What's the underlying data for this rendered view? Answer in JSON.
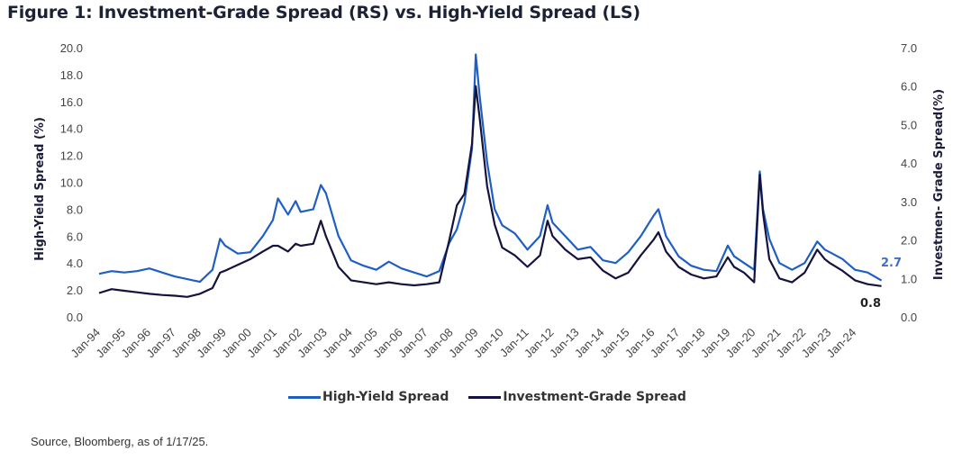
{
  "title": "Figure 1: Investment-Grade Spread (RS) vs. High-Yield Spread (LS)",
  "source": "Source, Bloomberg, as of 1/17/25.",
  "colors": {
    "high_yield": "#1f5fc4",
    "investment_grade": "#14133d",
    "hy_end_label": "#3b6fc9",
    "ig_end_label": "#222222"
  },
  "chart_data": {
    "type": "line",
    "title": "Figure 1: Investment-Grade Spread (RS) vs. High-Yield Spread (LS)",
    "xlabel": "",
    "ylabel_left": "High-Yield Spread (%)",
    "ylabel_right": "Investmen- Grade Spread(%)",
    "ylim_left": [
      0,
      20
    ],
    "ylim_right": [
      0,
      7
    ],
    "yticks_left": [
      "0.0",
      "2.0",
      "4.0",
      "6.0",
      "8.0",
      "10.0",
      "12.0",
      "14.0",
      "16.0",
      "18.0",
      "20.0"
    ],
    "yticks_right": [
      "0.0",
      "1.0",
      "2.0",
      "3.0",
      "4.0",
      "5.0",
      "6.0",
      "7.0"
    ],
    "xticks": [
      "Jan-94",
      "Jan-95",
      "Jan-96",
      "Jan-97",
      "Jan-98",
      "Jan-99",
      "Jan-00",
      "Jan-01",
      "Jan-02",
      "Jan-03",
      "Jan-04",
      "Jan-05",
      "Jan-06",
      "Jan-07",
      "Jan-08",
      "Jan-09",
      "Jan-10",
      "Jan-11",
      "Jan-12",
      "Jan-13",
      "Jan-14",
      "Jan-15",
      "Jan-16",
      "Jan-17",
      "Jan-18",
      "Jan-19",
      "Jan-20",
      "Jan-21",
      "Jan-22",
      "Jan-23",
      "Jan-24"
    ],
    "grid": false,
    "legend_position": "bottom",
    "annotations": [
      {
        "text": "2.7",
        "series": "High-Yield Spread",
        "position": "last point"
      },
      {
        "text": "0.8",
        "series": "Investment-Grade Spread",
        "position": "last point"
      }
    ],
    "series": [
      {
        "name": "High-Yield Spread",
        "axis": "left",
        "x": [
          1994.0,
          1994.5,
          1995.0,
          1995.5,
          1996.0,
          1996.5,
          1997.0,
          1997.5,
          1998.0,
          1998.5,
          1998.8,
          1999.0,
          1999.5,
          2000.0,
          2000.5,
          2000.9,
          2001.1,
          2001.5,
          2001.8,
          2002.0,
          2002.5,
          2002.8,
          2003.0,
          2003.5,
          2004.0,
          2004.5,
          2005.0,
          2005.5,
          2006.0,
          2006.5,
          2007.0,
          2007.5,
          2007.9,
          2008.2,
          2008.5,
          2008.8,
          2008.95,
          2009.1,
          2009.4,
          2009.7,
          2010.0,
          2010.5,
          2011.0,
          2011.5,
          2011.8,
          2012.0,
          2012.5,
          2013.0,
          2013.5,
          2014.0,
          2014.5,
          2015.0,
          2015.5,
          2016.0,
          2016.2,
          2016.5,
          2017.0,
          2017.5,
          2018.0,
          2018.5,
          2018.95,
          2019.2,
          2019.6,
          2020.0,
          2020.22,
          2020.35,
          2020.6,
          2021.0,
          2021.5,
          2022.0,
          2022.5,
          2022.8,
          2023.0,
          2023.5,
          2024.0,
          2024.5,
          2025.05
        ],
        "values": [
          3.2,
          3.4,
          3.3,
          3.4,
          3.6,
          3.3,
          3.0,
          2.8,
          2.6,
          3.5,
          5.8,
          5.3,
          4.7,
          4.8,
          6.0,
          7.2,
          8.8,
          7.6,
          8.6,
          7.8,
          8.0,
          9.8,
          9.2,
          6.0,
          4.2,
          3.8,
          3.5,
          4.1,
          3.6,
          3.3,
          3.0,
          3.4,
          5.5,
          6.5,
          8.5,
          12.5,
          19.5,
          16.5,
          11.5,
          8.0,
          6.8,
          6.2,
          5.0,
          6.0,
          8.3,
          7.0,
          6.0,
          5.0,
          5.2,
          4.2,
          4.0,
          4.8,
          6.0,
          7.5,
          8.0,
          6.0,
          4.5,
          3.8,
          3.5,
          3.4,
          5.3,
          4.5,
          4.0,
          3.5,
          10.8,
          8.0,
          5.8,
          4.0,
          3.5,
          4.0,
          5.6,
          5.0,
          4.8,
          4.3,
          3.5,
          3.3,
          2.7
        ]
      },
      {
        "name": "Investment-Grade Spread",
        "axis": "right",
        "x": [
          1994.0,
          1994.5,
          1995.0,
          1995.5,
          1996.0,
          1996.5,
          1997.0,
          1997.5,
          1998.0,
          1998.5,
          1998.8,
          1999.0,
          1999.5,
          2000.0,
          2000.5,
          2000.9,
          2001.1,
          2001.5,
          2001.8,
          2002.0,
          2002.5,
          2002.8,
          2003.0,
          2003.5,
          2004.0,
          2004.5,
          2005.0,
          2005.5,
          2006.0,
          2006.5,
          2007.0,
          2007.5,
          2007.9,
          2008.2,
          2008.5,
          2008.8,
          2008.95,
          2009.1,
          2009.4,
          2009.7,
          2010.0,
          2010.5,
          2011.0,
          2011.5,
          2011.8,
          2012.0,
          2012.5,
          2013.0,
          2013.5,
          2014.0,
          2014.5,
          2015.0,
          2015.5,
          2016.0,
          2016.2,
          2016.5,
          2017.0,
          2017.5,
          2018.0,
          2018.5,
          2018.95,
          2019.2,
          2019.6,
          2020.0,
          2020.22,
          2020.35,
          2020.6,
          2021.0,
          2021.5,
          2022.0,
          2022.5,
          2022.8,
          2023.0,
          2023.5,
          2024.0,
          2024.5,
          2025.05
        ],
        "values": [
          0.62,
          0.72,
          0.68,
          0.64,
          0.6,
          0.57,
          0.55,
          0.52,
          0.6,
          0.75,
          1.15,
          1.2,
          1.35,
          1.5,
          1.7,
          1.85,
          1.85,
          1.7,
          1.9,
          1.85,
          1.9,
          2.5,
          2.1,
          1.3,
          0.95,
          0.9,
          0.85,
          0.9,
          0.85,
          0.82,
          0.85,
          0.9,
          2.0,
          2.9,
          3.2,
          4.5,
          6.0,
          5.2,
          3.4,
          2.4,
          1.8,
          1.6,
          1.3,
          1.6,
          2.5,
          2.1,
          1.75,
          1.5,
          1.55,
          1.2,
          1.0,
          1.15,
          1.6,
          2.0,
          2.2,
          1.7,
          1.3,
          1.1,
          1.0,
          1.05,
          1.55,
          1.3,
          1.15,
          0.9,
          3.7,
          2.7,
          1.5,
          1.0,
          0.9,
          1.15,
          1.75,
          1.5,
          1.4,
          1.2,
          0.95,
          0.85,
          0.8
        ]
      }
    ]
  }
}
